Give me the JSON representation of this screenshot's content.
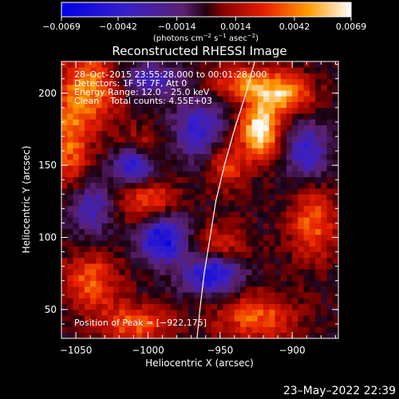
{
  "chart_data": {
    "type": "heatmap",
    "title": "Reconstructed RHESSI Image",
    "xlabel": "Heliocentric X (arcsec)",
    "ylabel": "Heliocentric Y (arcsec)",
    "xlim": [
      -1060,
      -868
    ],
    "ylim": [
      30,
      222
    ],
    "x_ticks": [
      -1050,
      -1000,
      -950,
      -900
    ],
    "y_ticks": [
      50,
      100,
      150,
      200
    ],
    "x_tick_labels": [
      "−1050",
      "−1000",
      "−950",
      "−900"
    ],
    "y_tick_labels": [
      "50",
      "100",
      "150",
      "200"
    ],
    "colorbar": {
      "min": -0.0069,
      "max": 0.0069,
      "ticks": [
        -0.0069,
        -0.0042,
        -0.0014,
        0.0014,
        0.0042,
        0.0069
      ],
      "tick_labels": [
        "−0.0069",
        "−0.0042",
        "−0.0014",
        "0.0014",
        "0.0042",
        "0.0069"
      ],
      "unit_prefix": "(photons cm",
      "unit_exp1": "−2",
      "unit_mid": " s",
      "unit_exp2": "−1",
      "unit_mid2": " asec",
      "unit_exp3": "−2",
      "unit_suffix": ")"
    },
    "info_lines": [
      "28–Oct–2015 23:55:28.000 to 00:01:28.000",
      "Detectors: 1F 5F 7F, Att 0",
      "Energy Range: 12.0 – 25.0 keV",
      "Clean    Total counts: 4.55E+03"
    ],
    "peak_label": "Position of Peak = [−922,175]",
    "peak_position": [
      -922,
      175
    ],
    "limb_points": [
      [
        -926,
        222
      ],
      [
        -932,
        200
      ],
      [
        -940,
        175
      ],
      [
        -947,
        150
      ],
      [
        -953,
        125
      ],
      [
        -957,
        100
      ],
      [
        -961,
        75
      ],
      [
        -964,
        50
      ],
      [
        -966,
        30
      ]
    ],
    "sources": [
      {
        "x": -922,
        "y": 175,
        "amp": 0.0069,
        "sx": 10,
        "sy": 14
      },
      {
        "x": -905,
        "y": 200,
        "amp": 0.005,
        "sx": 14,
        "sy": 10
      },
      {
        "x": -935,
        "y": 208,
        "amp": 0.004,
        "sx": 16,
        "sy": 8
      },
      {
        "x": -945,
        "y": 150,
        "amp": 0.0035,
        "sx": 9,
        "sy": 12
      },
      {
        "x": -1040,
        "y": 205,
        "amp": 0.0045,
        "sx": 16,
        "sy": 20
      },
      {
        "x": -1055,
        "y": 165,
        "amp": 0.004,
        "sx": 10,
        "sy": 22
      },
      {
        "x": -1000,
        "y": 125,
        "amp": 0.004,
        "sx": 14,
        "sy": 12
      },
      {
        "x": -1040,
        "y": 70,
        "amp": 0.004,
        "sx": 14,
        "sy": 14
      },
      {
        "x": -1010,
        "y": 40,
        "amp": 0.004,
        "sx": 18,
        "sy": 10
      },
      {
        "x": -925,
        "y": 45,
        "amp": 0.004,
        "sx": 20,
        "sy": 12
      },
      {
        "x": -885,
        "y": 110,
        "amp": 0.004,
        "sx": 12,
        "sy": 18
      },
      {
        "x": -950,
        "y": 95,
        "amp": 0.003,
        "sx": 14,
        "sy": 10
      },
      {
        "x": -1005,
        "y": 165,
        "amp": 0.0025,
        "sx": 12,
        "sy": 8
      },
      {
        "x": -1010,
        "y": 150,
        "amp": -0.0055,
        "sx": 10,
        "sy": 10
      },
      {
        "x": -990,
        "y": 100,
        "amp": -0.0065,
        "sx": 12,
        "sy": 12
      },
      {
        "x": -955,
        "y": 75,
        "amp": -0.006,
        "sx": 14,
        "sy": 10
      },
      {
        "x": -965,
        "y": 175,
        "amp": -0.0045,
        "sx": 12,
        "sy": 14
      },
      {
        "x": -1000,
        "y": 210,
        "amp": -0.004,
        "sx": 14,
        "sy": 8
      },
      {
        "x": -890,
        "y": 160,
        "amp": -0.0045,
        "sx": 10,
        "sy": 14
      },
      {
        "x": -1040,
        "y": 120,
        "amp": -0.004,
        "sx": 10,
        "sy": 12
      }
    ]
  },
  "footer": {
    "timestamp": "23–May–2022 22:39"
  }
}
